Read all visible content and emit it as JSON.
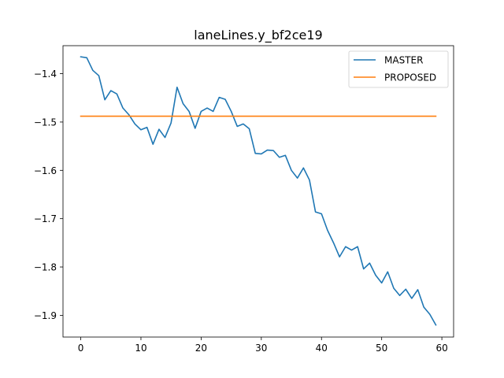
{
  "chart_data": {
    "type": "line",
    "title": "laneLines.y_bf2ce19",
    "xlabel": "",
    "ylabel": "",
    "xlim": [
      -2.95,
      61.95
    ],
    "ylim": [
      -1.945,
      -1.342
    ],
    "xticks": [
      0,
      10,
      20,
      30,
      40,
      50,
      60
    ],
    "yticks": [
      -1.9,
      -1.8,
      -1.7,
      -1.6,
      -1.5,
      -1.4
    ],
    "xtick_labels": [
      "0",
      "10",
      "20",
      "30",
      "40",
      "50",
      "60"
    ],
    "ytick_labels": [
      "−1.9",
      "−1.8",
      "−1.7",
      "−1.6",
      "−1.5",
      "−1.4"
    ],
    "grid": false,
    "legend_position": "top-right",
    "series": [
      {
        "name": "MASTER",
        "color": "#1f77b4",
        "x": [
          0,
          1,
          2,
          3,
          4,
          5,
          6,
          7,
          8,
          9,
          10,
          11,
          12,
          13,
          14,
          15,
          16,
          17,
          18,
          19,
          20,
          21,
          22,
          23,
          24,
          25,
          26,
          27,
          28,
          29,
          30,
          31,
          32,
          33,
          34,
          35,
          36,
          37,
          38,
          39,
          40,
          41,
          42,
          43,
          44,
          45,
          46,
          47,
          48,
          49,
          50,
          51,
          52,
          53,
          54,
          55,
          56,
          57,
          58,
          59
        ],
        "values": [
          -1.365,
          -1.367,
          -1.393,
          -1.404,
          -1.454,
          -1.435,
          -1.442,
          -1.471,
          -1.485,
          -1.504,
          -1.516,
          -1.511,
          -1.546,
          -1.515,
          -1.532,
          -1.502,
          -1.428,
          -1.462,
          -1.478,
          -1.513,
          -1.478,
          -1.471,
          -1.478,
          -1.449,
          -1.453,
          -1.478,
          -1.509,
          -1.504,
          -1.514,
          -1.565,
          -1.566,
          -1.558,
          -1.559,
          -1.573,
          -1.569,
          -1.6,
          -1.616,
          -1.595,
          -1.62,
          -1.686,
          -1.69,
          -1.724,
          -1.75,
          -1.779,
          -1.758,
          -1.765,
          -1.758,
          -1.804,
          -1.792,
          -1.817,
          -1.833,
          -1.81,
          -1.844,
          -1.859,
          -1.846,
          -1.865,
          -1.847,
          -1.883,
          -1.898,
          -1.92
        ]
      },
      {
        "name": "PROPOSED",
        "color": "#ff7f0e",
        "x": [
          0,
          59
        ],
        "values": [
          -1.488,
          -1.488
        ]
      }
    ]
  }
}
